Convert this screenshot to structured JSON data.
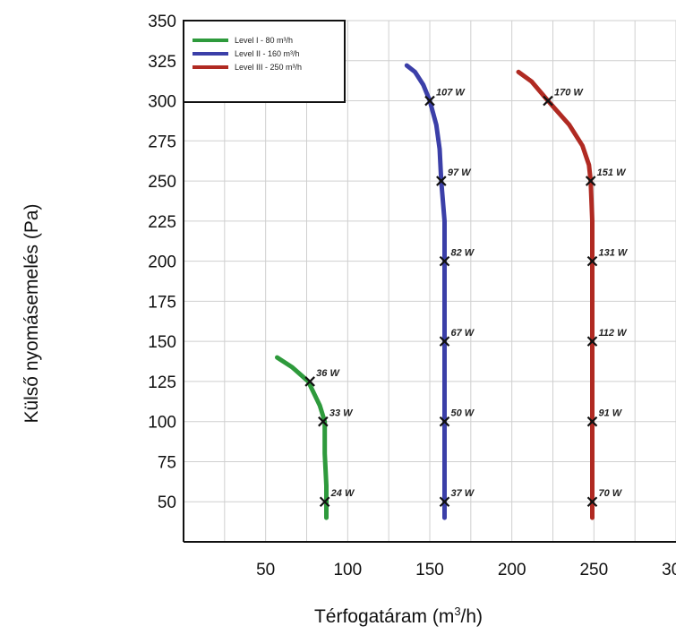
{
  "chart_data": {
    "type": "line",
    "title": "",
    "xlabel": "Térfogatáram (m3/h)",
    "xlabel_parts": {
      "before": "Térfogatáram (m",
      "sup": "3",
      "after": "/h)"
    },
    "ylabel": "Külső nyomásemelés (Pa)",
    "xlim": [
      0,
      300
    ],
    "ylim": [
      25,
      350
    ],
    "xticks": [
      50,
      100,
      150,
      200,
      250,
      300
    ],
    "xtick_labels": [
      "50",
      "100",
      "150",
      "200",
      "250",
      "300"
    ],
    "yticks": [
      50,
      75,
      100,
      125,
      150,
      175,
      200,
      225,
      250,
      275,
      300,
      325,
      350
    ],
    "ytick_labels": [
      "50",
      "75",
      "100",
      "125",
      "150",
      "175",
      "200",
      "225",
      "250",
      "275",
      "300",
      "325",
      "350"
    ],
    "grid": true,
    "legend_position": "top-left",
    "series": [
      {
        "name": "Level I - 80 m³/h",
        "color": "#2e9a3c",
        "curve": [
          [
            57,
            140
          ],
          [
            66,
            134
          ],
          [
            76,
            125
          ],
          [
            83,
            110
          ],
          [
            86,
            100
          ],
          [
            86,
            80
          ],
          [
            87,
            60
          ],
          [
            87,
            50
          ],
          [
            87,
            40
          ]
        ],
        "markers": [
          {
            "x": 77,
            "y": 125,
            "label": "36 W"
          },
          {
            "x": 85,
            "y": 100,
            "label": "33 W"
          },
          {
            "x": 86,
            "y": 50,
            "label": "24 W"
          }
        ]
      },
      {
        "name": "Level II - 160 m³/h",
        "color": "#3b3fa8",
        "curve": [
          [
            136,
            322
          ],
          [
            141,
            318
          ],
          [
            146,
            310
          ],
          [
            150,
            300
          ],
          [
            154,
            285
          ],
          [
            156,
            270
          ],
          [
            157,
            250
          ],
          [
            159,
            225
          ],
          [
            159,
            200
          ],
          [
            159,
            150
          ],
          [
            159,
            100
          ],
          [
            159,
            50
          ],
          [
            159,
            40
          ]
        ],
        "markers": [
          {
            "x": 150,
            "y": 300,
            "label": "107 W"
          },
          {
            "x": 157,
            "y": 250,
            "label": "97 W"
          },
          {
            "x": 159,
            "y": 200,
            "label": "82 W"
          },
          {
            "x": 159,
            "y": 150,
            "label": "67 W"
          },
          {
            "x": 159,
            "y": 100,
            "label": "50 W"
          },
          {
            "x": 159,
            "y": 50,
            "label": "37 W"
          }
        ]
      },
      {
        "name": "Level III - 250 m³/h",
        "color": "#b02a22",
        "curve": [
          [
            204,
            318
          ],
          [
            212,
            312
          ],
          [
            222,
            300
          ],
          [
            235,
            285
          ],
          [
            243,
            272
          ],
          [
            247,
            260
          ],
          [
            248,
            250
          ],
          [
            249,
            225
          ],
          [
            249,
            200
          ],
          [
            249,
            150
          ],
          [
            249,
            100
          ],
          [
            249,
            50
          ],
          [
            249,
            40
          ]
        ],
        "markers": [
          {
            "x": 222,
            "y": 300,
            "label": "170 W"
          },
          {
            "x": 248,
            "y": 250,
            "label": "151 W"
          },
          {
            "x": 249,
            "y": 200,
            "label": "131 W"
          },
          {
            "x": 249,
            "y": 150,
            "label": "112 W"
          },
          {
            "x": 249,
            "y": 100,
            "label": "91 W"
          },
          {
            "x": 249,
            "y": 50,
            "label": "70 W"
          }
        ]
      }
    ]
  }
}
